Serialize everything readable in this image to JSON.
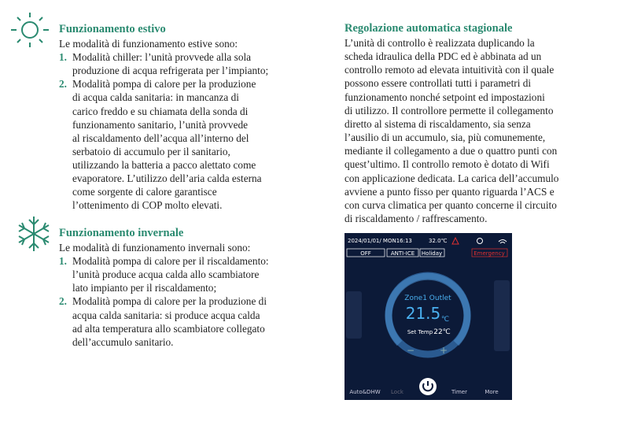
{
  "left": {
    "sections": [
      {
        "title": "Funzionamento estivo",
        "intro": "Le modalità di funzionamento estive sono:",
        "items": [
          {
            "number": "1.",
            "lines": [
              "Modalità chiller: l’unità provvede alla sola",
              "produzione di acqua refrigerata per l’impianto;"
            ]
          },
          {
            "number": "2.",
            "lines": [
              "Modalità pompa di calore per la produzione",
              "di acqua  calda sanitaria: in mancanza di",
              "carico freddo e su chiamata della sonda di",
              "funzionamento sanitario, l’unità provvede",
              "al riscaldamento dell’acqua all’interno del",
              "serbatoio di accumulo per il sanitario,",
              "utilizzando la batteria  a pacco alettato come",
              "evaporatore. L’utilizzo  dell’aria calda esterna",
              "come sorgente di calore garantisce",
              "l’ottenimento di COP molto elevati."
            ]
          }
        ]
      },
      {
        "title": "Funzionamento invernale",
        "intro": "Le modalità di funzionamento invernali sono:",
        "items": [
          {
            "number": "1.",
            "lines": [
              "Modalità pompa di calore per il riscaldamento:",
              "l’unità produce acqua calda allo scambiatore",
              "lato impianto per il riscaldamento;"
            ]
          },
          {
            "number": "2.",
            "lines": [
              "Modalità pompa di calore per la produzione di",
              "acqua calda sanitaria: si produce acqua calda",
              "ad alta temperatura allo scambiatore collegato",
              "dell’accumulo sanitario."
            ]
          }
        ]
      }
    ]
  },
  "right": {
    "title": "Regolazione automatica stagionale",
    "lines": [
      "L’unità di controllo è realizzata duplicando la",
      "scheda idraulica della PDC ed è abbinata ad un",
      "controllo remoto ad elevata intuitività con il quale",
      "possono essere controllati tutti i parametri di",
      "funzionamento nonché setpoint ed impostazioni",
      "di utilizzo. Il controllore permette il collegamento",
      "diretto al sistema di riscaldamento, sia senza",
      "l’ausilio di un accumulo, sia, più comunemente,",
      "mediante il collegamento a due o quattro punti con",
      "quest’ultimo. Il controllo remoto è dotato di Wifi",
      "con applicazione dedicata. La carica dell’accumulo",
      "avviene a punto fisso per quanto riguarda l’ACS e",
      "con curva climatica per quanto concerne il circuito",
      "di riscaldamento / raffrescamento."
    ]
  },
  "screen": {
    "datetime": "2024/01/01/ MON16:13",
    "outdoor": "32.0℃",
    "status": [
      "OFF",
      "ANTI-ICE",
      "Holiday"
    ],
    "emergency": "Emergency",
    "zone": "Zone1 Outlet",
    "temp": "21.5",
    "unit": "℃",
    "set_label": "Set Temp",
    "set_value": "22℃",
    "minus": "−",
    "plus": "+",
    "nav": [
      "Auto&DHW",
      "Lock",
      "Timer",
      "More"
    ]
  }
}
